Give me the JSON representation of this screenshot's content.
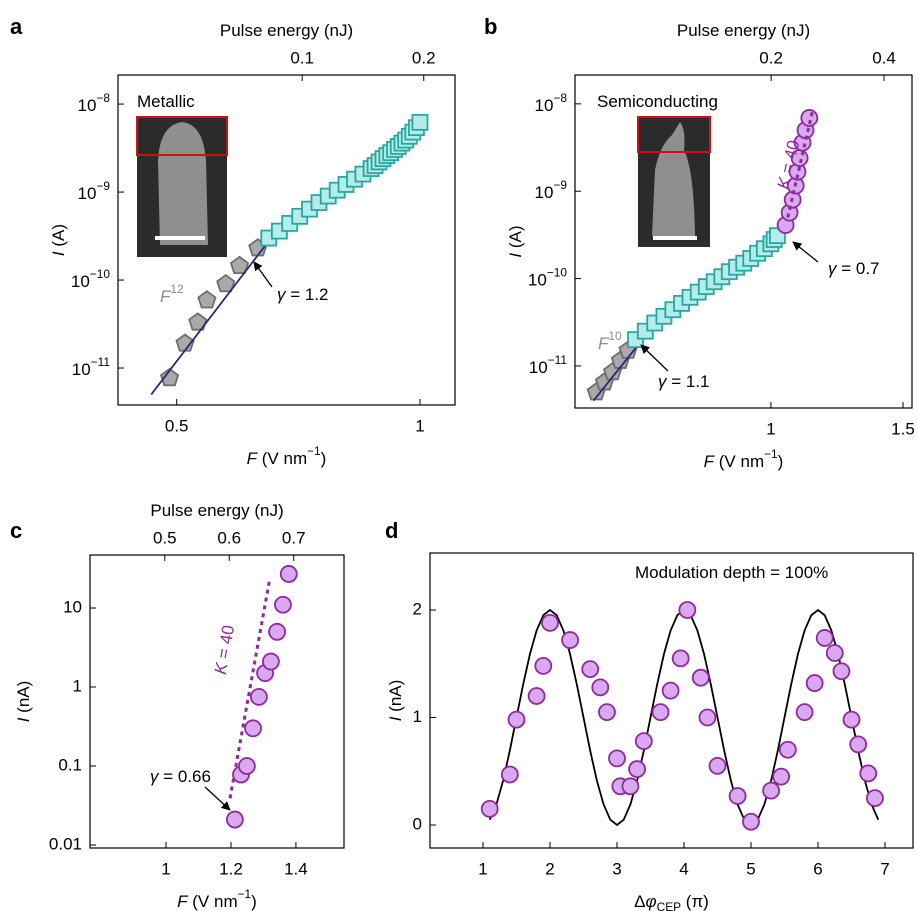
{
  "chart_data": [
    {
      "type": "scatter",
      "panel": "a",
      "xscale": "log",
      "yscale": "log",
      "x2scale": "log",
      "xlim": [
        0.423,
        1.105
      ],
      "xticks": [
        0.5,
        1
      ],
      "ylim": [
        3.8e-12,
        2.14e-08
      ],
      "yticks": [
        {
          "value": 1e-08,
          "label": "10",
          "sup": "−8"
        },
        {
          "value": 1e-09,
          "label": "10",
          "sup": "−9"
        },
        {
          "value": 1e-10,
          "label": "10",
          "sup": "−10"
        },
        {
          "value": 1e-11,
          "label": "10",
          "sup": "−11"
        }
      ],
      "x2lim": [
        0.035,
        0.239
      ],
      "x2ticks": [
        0.1,
        0.2
      ],
      "x2label": [
        {
          "text": "Pulse energy (nJ)"
        }
      ],
      "xlabel": [
        {
          "text": "F",
          "italic": true
        },
        {
          "text": " (V nm"
        },
        {
          "text": "−1",
          "sup": true
        },
        {
          "text": ")"
        }
      ],
      "ylabel": [
        {
          "text": "I",
          "italic": true
        },
        {
          "text": " (A)"
        }
      ],
      "annotations": [
        {
          "parts": [
            {
              "text": "Metallic"
            }
          ],
          "color": "#000000"
        },
        {
          "parts": [
            {
              "text": "F",
              "italic": true
            },
            {
              "text": "12",
              "sup": true
            }
          ],
          "color": "#8a8a8a"
        },
        {
          "parts": [
            {
              "text": "γ",
              "italic": true
            },
            {
              "text": " = 1.2"
            }
          ],
          "color": "#000000"
        }
      ],
      "series": [
        {
          "marker": "pentagon",
          "color": "#a9a9a9",
          "edge": "#6e6e6e",
          "x": [
            0.49,
            0.512,
            0.531,
            0.545,
            0.575,
            0.598,
            0.63
          ],
          "values": [
            7.7e-12,
            1.9e-11,
            3.3e-11,
            5.9e-11,
            9e-11,
            1.45e-10,
            2.3e-10
          ]
        },
        {
          "marker": "line",
          "color": "#1f2a7a",
          "x": [
            0.465,
            0.655
          ],
          "values": [
            5e-12,
            3.05e-10
          ]
        },
        {
          "marker": "square",
          "color": "#b4ecea",
          "edge": "#2aa6a0",
          "x": [
            0.65,
            0.67,
            0.69,
            0.71,
            0.73,
            0.75,
            0.77,
            0.79,
            0.81,
            0.83,
            0.85,
            0.87,
            0.88,
            0.89,
            0.9,
            0.91,
            0.92,
            0.93,
            0.94,
            0.95,
            0.96,
            0.97,
            0.98,
            0.99,
            1.0
          ],
          "values": [
            3e-10,
            3.6e-10,
            4.4e-10,
            5.3e-10,
            6.4e-10,
            7.6e-10,
            9e-10,
            1.05e-09,
            1.22e-09,
            1.4e-09,
            1.6e-09,
            1.85e-09,
            2e-09,
            2.2e-09,
            2.4e-09,
            2.6e-09,
            2.8e-09,
            3.05e-09,
            3.3e-09,
            3.6e-09,
            3.9e-09,
            4.3e-09,
            4.8e-09,
            5.4e-09,
            6.2e-09
          ]
        }
      ]
    },
    {
      "type": "scatter",
      "panel": "b",
      "xscale": "log",
      "yscale": "log",
      "x2scale": "log",
      "xlim": [
        0.548,
        1.542
      ],
      "xticks": [
        1,
        1.5
      ],
      "ylim": [
        3.3e-12,
        2.14e-08
      ],
      "yticks": [
        {
          "value": 1e-08,
          "label": "10",
          "sup": "−8"
        },
        {
          "value": 1e-09,
          "label": "10",
          "sup": "−9"
        },
        {
          "value": 1e-10,
          "label": "10",
          "sup": "−10"
        },
        {
          "value": 1e-11,
          "label": "10",
          "sup": "−11"
        }
      ],
      "x2lim": [
        0.06,
        0.475
      ],
      "x2ticks": [
        0.2,
        0.4
      ],
      "x2label": [
        {
          "text": "Pulse energy (nJ)"
        }
      ],
      "xlabel": [
        {
          "text": "F",
          "italic": true
        },
        {
          "text": " (V nm"
        },
        {
          "text": "−1",
          "sup": true
        },
        {
          "text": ")"
        }
      ],
      "ylabel": [
        {
          "text": "I",
          "italic": true
        },
        {
          "text": " (A)"
        }
      ],
      "annotations": [
        {
          "parts": [
            {
              "text": "Semiconducting"
            }
          ],
          "color": "#000000"
        },
        {
          "parts": [
            {
              "text": "F",
              "italic": true
            },
            {
              "text": "10",
              "sup": true
            }
          ],
          "color": "#8a8a8a"
        },
        {
          "parts": [
            {
              "text": "γ",
              "italic": true
            },
            {
              "text": " = 1.1"
            }
          ],
          "color": "#000000"
        },
        {
          "parts": [
            {
              "text": "γ",
              "italic": true
            },
            {
              "text": " = 0.7"
            }
          ],
          "color": "#000000"
        },
        {
          "parts": [
            {
              "text": "K",
              "italic": true
            },
            {
              "text": " = 40"
            }
          ],
          "color": "#8e2a9c"
        }
      ],
      "series": [
        {
          "marker": "pentagon",
          "color": "#a9a9a9",
          "edge": "#6e6e6e",
          "x": [
            0.585,
            0.6,
            0.615,
            0.63,
            0.645
          ],
          "values": [
            5e-12,
            6.5e-12,
            8.5e-12,
            1.15e-11,
            1.5e-11
          ]
        },
        {
          "marker": "line",
          "color": "#1f2a7a",
          "x": [
            0.58,
            0.68
          ],
          "values": [
            4e-12,
            2.2e-11
          ]
        },
        {
          "marker": "square",
          "color": "#b4ecea",
          "edge": "#2aa6a0",
          "x": [
            0.66,
            0.68,
            0.7,
            0.72,
            0.74,
            0.76,
            0.78,
            0.8,
            0.82,
            0.84,
            0.86,
            0.88,
            0.9,
            0.92,
            0.94,
            0.96,
            0.98,
            1.0,
            1.01,
            1.02
          ],
          "values": [
            2e-11,
            2.5e-11,
            3.1e-11,
            3.7e-11,
            4.4e-11,
            5.2e-11,
            6.1e-11,
            7e-11,
            8.1e-11,
            9.2e-11,
            1.05e-10,
            1.2e-10,
            1.35e-10,
            1.5e-10,
            1.7e-10,
            1.95e-10,
            2.2e-10,
            2.5e-10,
            2.8e-10,
            3.1e-10
          ]
        },
        {
          "marker": "circle",
          "color": "#d9a8ef",
          "edge": "#8e2a9c",
          "x": [
            1.046,
            1.059,
            1.069,
            1.079,
            1.085,
            1.092,
            1.102,
            1.112,
            1.125
          ],
          "values": [
            4.1e-10,
            5.7e-10,
            8e-10,
            1.16e-09,
            1.67e-09,
            2.4e-09,
            3.6e-09,
            5e-09,
            6.9e-09
          ]
        },
        {
          "marker": "line",
          "dash": true,
          "color": "#8e2a9c",
          "x": [
            1.053,
            1.135
          ],
          "values": [
            5e-10,
            8e-09
          ]
        }
      ]
    },
    {
      "type": "scatter",
      "panel": "c",
      "xscale": "linear",
      "yscale": "log",
      "x2scale": "linear",
      "xlim": [
        0.766,
        1.548
      ],
      "xticks": [
        1,
        1.2,
        1.4
      ],
      "ylim": [
        0.00916,
        46.9
      ],
      "yticks": [
        0.01,
        0.1,
        1,
        10
      ],
      "x2lim": [
        0.384,
        0.778
      ],
      "x2ticks": [
        0.5,
        0.6,
        0.7
      ],
      "x2label": [
        {
          "text": "Pulse energy (nJ)"
        }
      ],
      "xlabel": [
        {
          "text": "F",
          "italic": true
        },
        {
          "text": " (V nm"
        },
        {
          "text": "−1",
          "sup": true
        },
        {
          "text": ")"
        }
      ],
      "ylabel": [
        {
          "text": "I",
          "italic": true
        },
        {
          "text": " (nA)"
        }
      ],
      "annotations": [
        {
          "parts": [
            {
              "text": "K",
              "italic": true
            },
            {
              "text": " = 40"
            }
          ],
          "color": "#8e2a9c"
        },
        {
          "parts": [
            {
              "text": "γ",
              "italic": true
            },
            {
              "text": " = 0.66"
            }
          ],
          "color": "#000000"
        }
      ],
      "series": [
        {
          "marker": "line",
          "dash": true,
          "color": "#8e2a9c",
          "x": [
            1.197,
            1.32
          ],
          "values": [
            0.039,
            24
          ]
        },
        {
          "marker": "circle",
          "color": "#d9a8ef",
          "edge": "#8e2a9c",
          "x": [
            1.212,
            1.231,
            1.249,
            1.268,
            1.286,
            1.305,
            1.323,
            1.342,
            1.36,
            1.378
          ],
          "values": [
            0.021,
            0.078,
            0.1,
            0.3,
            0.75,
            1.5,
            2.1,
            5,
            11,
            27
          ]
        }
      ]
    },
    {
      "type": "scatter",
      "panel": "d",
      "xscale": "linear",
      "yscale": "linear",
      "xlim": [
        0.209,
        7.418
      ],
      "xticks": [
        1,
        2,
        3,
        4,
        5,
        6,
        7
      ],
      "ylim": [
        -0.214,
        2.53
      ],
      "yticks": [
        0,
        1,
        2
      ],
      "xlabel": [
        {
          "text": "Δ"
        },
        {
          "text": "φ",
          "italic": true
        },
        {
          "text": "CEP",
          "sub": true
        },
        {
          "text": " (π)"
        }
      ],
      "ylabel": [
        {
          "text": "I",
          "italic": true
        },
        {
          "text": " (nA)"
        }
      ],
      "annotations": [
        {
          "parts": [
            {
              "text": "Modulation depth = 100%"
            }
          ],
          "color": "#000000"
        }
      ],
      "series": [
        {
          "marker": "line",
          "color": "#000000",
          "x": [
            1.1,
            1.2,
            1.3,
            1.4,
            1.5,
            1.6,
            1.7,
            1.8,
            1.9,
            2.0,
            2.1,
            2.2,
            2.3,
            2.4,
            2.5,
            2.6,
            2.7,
            2.8,
            2.9,
            3.0,
            3.1,
            3.2,
            3.3,
            3.4,
            3.5,
            3.6,
            3.7,
            3.8,
            3.9,
            4.0,
            4.1,
            4.2,
            4.3,
            4.4,
            4.5,
            4.6,
            4.7,
            4.8,
            4.9,
            5.0,
            5.1,
            5.2,
            5.3,
            5.4,
            5.5,
            5.6,
            5.7,
            5.8,
            5.9,
            6.0,
            6.1,
            6.2,
            6.3,
            6.4,
            6.5,
            6.6,
            6.7,
            6.8,
            6.9
          ],
          "values": [
            0.049,
            0.191,
            0.412,
            0.691,
            1,
            1.309,
            1.588,
            1.809,
            1.951,
            2,
            1.951,
            1.809,
            1.588,
            1.309,
            1,
            0.691,
            0.412,
            0.191,
            0.049,
            0,
            0.049,
            0.191,
            0.412,
            0.691,
            1,
            1.309,
            1.588,
            1.809,
            1.951,
            2,
            1.951,
            1.809,
            1.588,
            1.309,
            1,
            0.691,
            0.412,
            0.191,
            0.049,
            0,
            0.049,
            0.191,
            0.412,
            0.691,
            1,
            1.309,
            1.588,
            1.809,
            1.951,
            2,
            1.951,
            1.809,
            1.588,
            1.309,
            1,
            0.691,
            0.412,
            0.191,
            0.049
          ]
        },
        {
          "marker": "circle",
          "color": "#d9a8ef",
          "edge": "#8e2a9c",
          "x": [
            1.1,
            1.4,
            1.5,
            1.8,
            1.9,
            2.0,
            2.3,
            2.6,
            2.75,
            2.85,
            3.0,
            3.05,
            3.2,
            3.3,
            3.4,
            3.65,
            3.8,
            3.95,
            4.05,
            4.25,
            4.35,
            4.5,
            4.8,
            5.0,
            5.3,
            5.45,
            5.55,
            5.8,
            5.95,
            6.1,
            6.25,
            6.35,
            6.5,
            6.6,
            6.75,
            6.85
          ],
          "values": [
            0.15,
            0.47,
            0.98,
            1.2,
            1.48,
            1.88,
            1.72,
            1.45,
            1.28,
            1.05,
            0.62,
            0.36,
            0.36,
            0.52,
            0.78,
            1.05,
            1.25,
            1.55,
            2.0,
            1.37,
            1.0,
            0.55,
            0.27,
            0.03,
            0.32,
            0.45,
            0.7,
            1.05,
            1.32,
            1.74,
            1.6,
            1.43,
            0.98,
            0.75,
            0.48,
            0.25
          ]
        }
      ]
    }
  ]
}
